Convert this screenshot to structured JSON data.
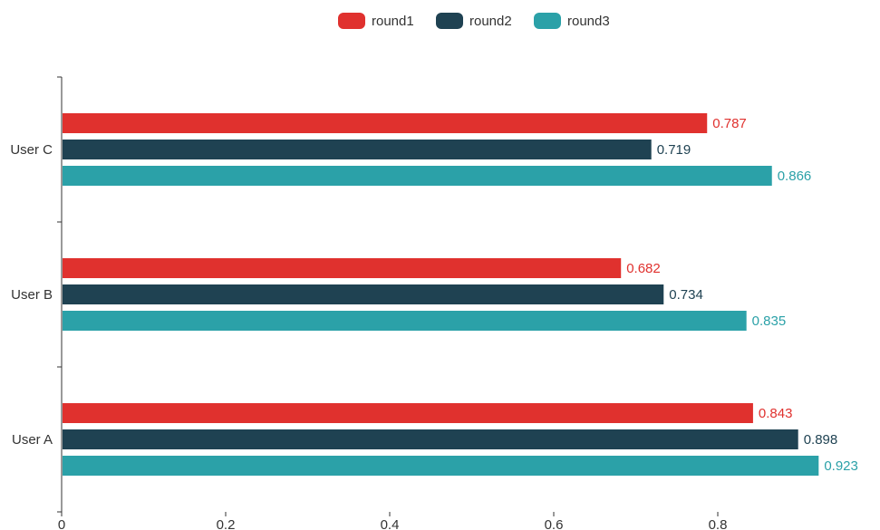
{
  "chart_data": {
    "type": "bar",
    "orientation": "horizontal",
    "categories": [
      "User A",
      "User B",
      "User C"
    ],
    "series": [
      {
        "name": "round1",
        "color": "#e0312e",
        "values": [
          0.843,
          0.682,
          0.787
        ]
      },
      {
        "name": "round2",
        "color": "#1f4252",
        "values": [
          0.898,
          0.734,
          0.719
        ]
      },
      {
        "name": "round3",
        "color": "#2ba1a8",
        "values": [
          0.923,
          0.835,
          0.866
        ]
      }
    ],
    "xlim": [
      0,
      1
    ],
    "x_ticks": [
      "0",
      "0.2",
      "0.4",
      "0.6",
      "0.8"
    ],
    "data_labels": true,
    "grid": false,
    "legend_position": "top-center",
    "title": "",
    "xlabel": "",
    "ylabel": ""
  }
}
